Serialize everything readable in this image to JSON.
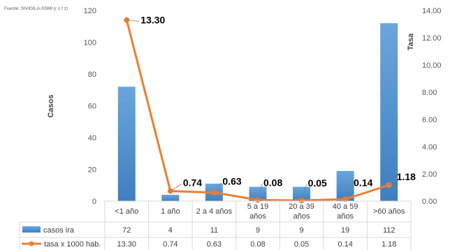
{
  "source_note": "Fuente: SIVIGILA-SSMI (r c f z)",
  "chart_data": {
    "type": "bar",
    "categories": [
      [
        "<1 año"
      ],
      [
        "1 año"
      ],
      [
        "2 a 4 años"
      ],
      [
        "5 a 19",
        "años"
      ],
      [
        "20 a 39",
        "años"
      ],
      [
        "40 a 59",
        "años"
      ],
      [
        ">60 años"
      ]
    ],
    "ylabel": "Casos",
    "y2label": "Tasa",
    "ylim": [
      0,
      120
    ],
    "y2lim": [
      0,
      14
    ],
    "yticks": [
      "0",
      "20",
      "40",
      "60",
      "80",
      "100",
      "120"
    ],
    "y2ticks": [
      "0.00",
      "2.00",
      "4.00",
      "6.00",
      "8.00",
      "10.00",
      "12.00",
      "14.00"
    ],
    "series": [
      {
        "name": "casos ira",
        "type": "bar",
        "axis": "left",
        "color": "#5b9bd5",
        "values": [
          72,
          4,
          11,
          9,
          9,
          19,
          112
        ],
        "labels": [
          "72",
          "4",
          "11",
          "9",
          "9",
          "19",
          "112"
        ]
      },
      {
        "name": "tasa x 1000 hab.",
        "type": "line",
        "axis": "right",
        "color": "#ed7d31",
        "values": [
          13.3,
          0.74,
          0.63,
          0.08,
          0.05,
          0.14,
          1.18
        ],
        "labels": [
          "13.30",
          "0.74",
          "0.63",
          "0.08",
          "0.05",
          "0.14",
          "1.18"
        ]
      }
    ],
    "legend": "bottom data table"
  }
}
